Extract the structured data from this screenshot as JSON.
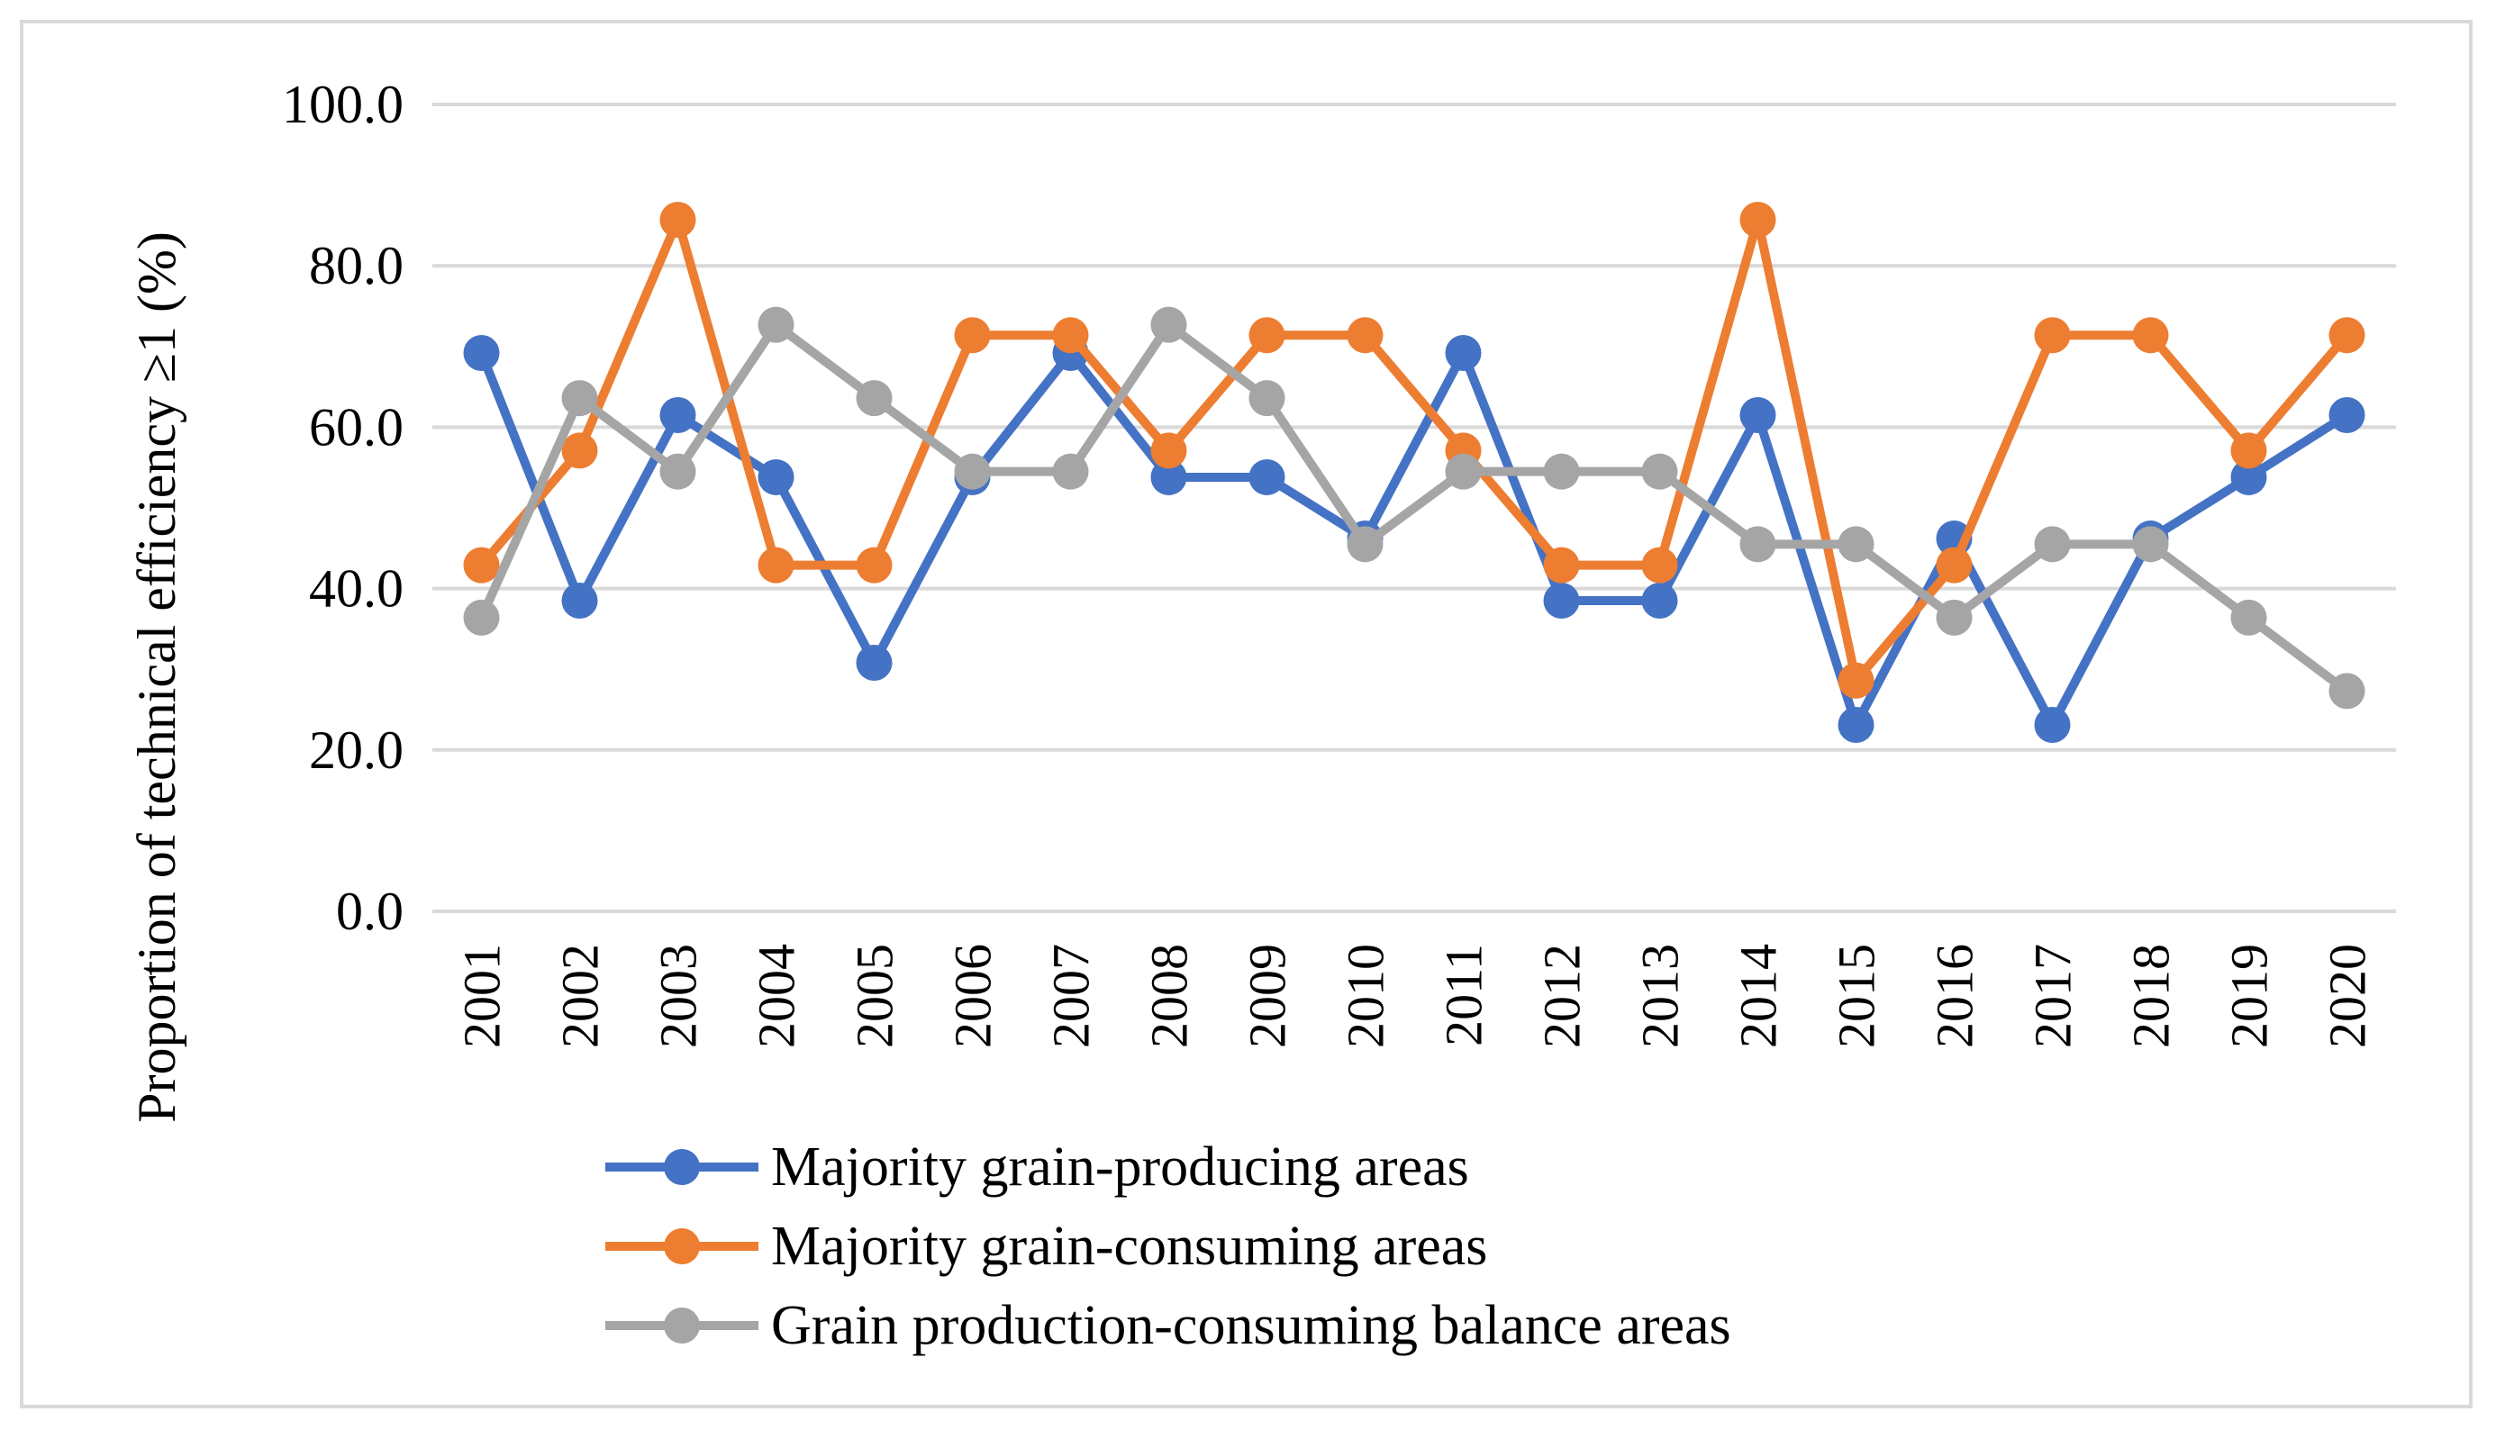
{
  "chart_data": {
    "type": "line",
    "title": "",
    "xlabel": "",
    "ylabel": "Proportion of technical efficiency ≥1 (%)",
    "ylim": [
      0,
      100
    ],
    "yticks": [
      "0.0",
      "20.0",
      "40.0",
      "60.0",
      "80.0",
      "100.0"
    ],
    "grid": true,
    "legend_position": "bottom",
    "categories": [
      "2001",
      "2002",
      "2003",
      "2004",
      "2005",
      "2006",
      "2007",
      "2008",
      "2009",
      "2010",
      "2011",
      "2012",
      "2013",
      "2014",
      "2015",
      "2016",
      "2017",
      "2018",
      "2019",
      "2020"
    ],
    "series": [
      {
        "name": "Majority grain-producing areas",
        "color": "#4472c4",
        "values": [
          69.2,
          38.5,
          61.5,
          53.8,
          30.8,
          53.8,
          69.2,
          53.8,
          53.8,
          46.2,
          69.2,
          38.5,
          38.5,
          61.5,
          23.1,
          46.2,
          23.1,
          46.2,
          53.8,
          61.5
        ]
      },
      {
        "name": "Majority grain-consuming areas",
        "color": "#ed7d31",
        "values": [
          42.9,
          57.1,
          85.7,
          42.9,
          42.9,
          71.4,
          71.4,
          57.1,
          71.4,
          71.4,
          57.1,
          42.9,
          42.9,
          85.7,
          28.6,
          42.9,
          71.4,
          71.4,
          57.1,
          71.4
        ]
      },
      {
        "name": "Grain production-consuming balance areas",
        "color": "#a5a5a5",
        "values": [
          36.4,
          63.6,
          54.5,
          72.7,
          63.6,
          54.5,
          54.5,
          72.7,
          63.6,
          45.5,
          54.5,
          54.5,
          54.5,
          45.5,
          45.5,
          36.4,
          45.5,
          45.5,
          36.4,
          27.3
        ]
      }
    ]
  }
}
